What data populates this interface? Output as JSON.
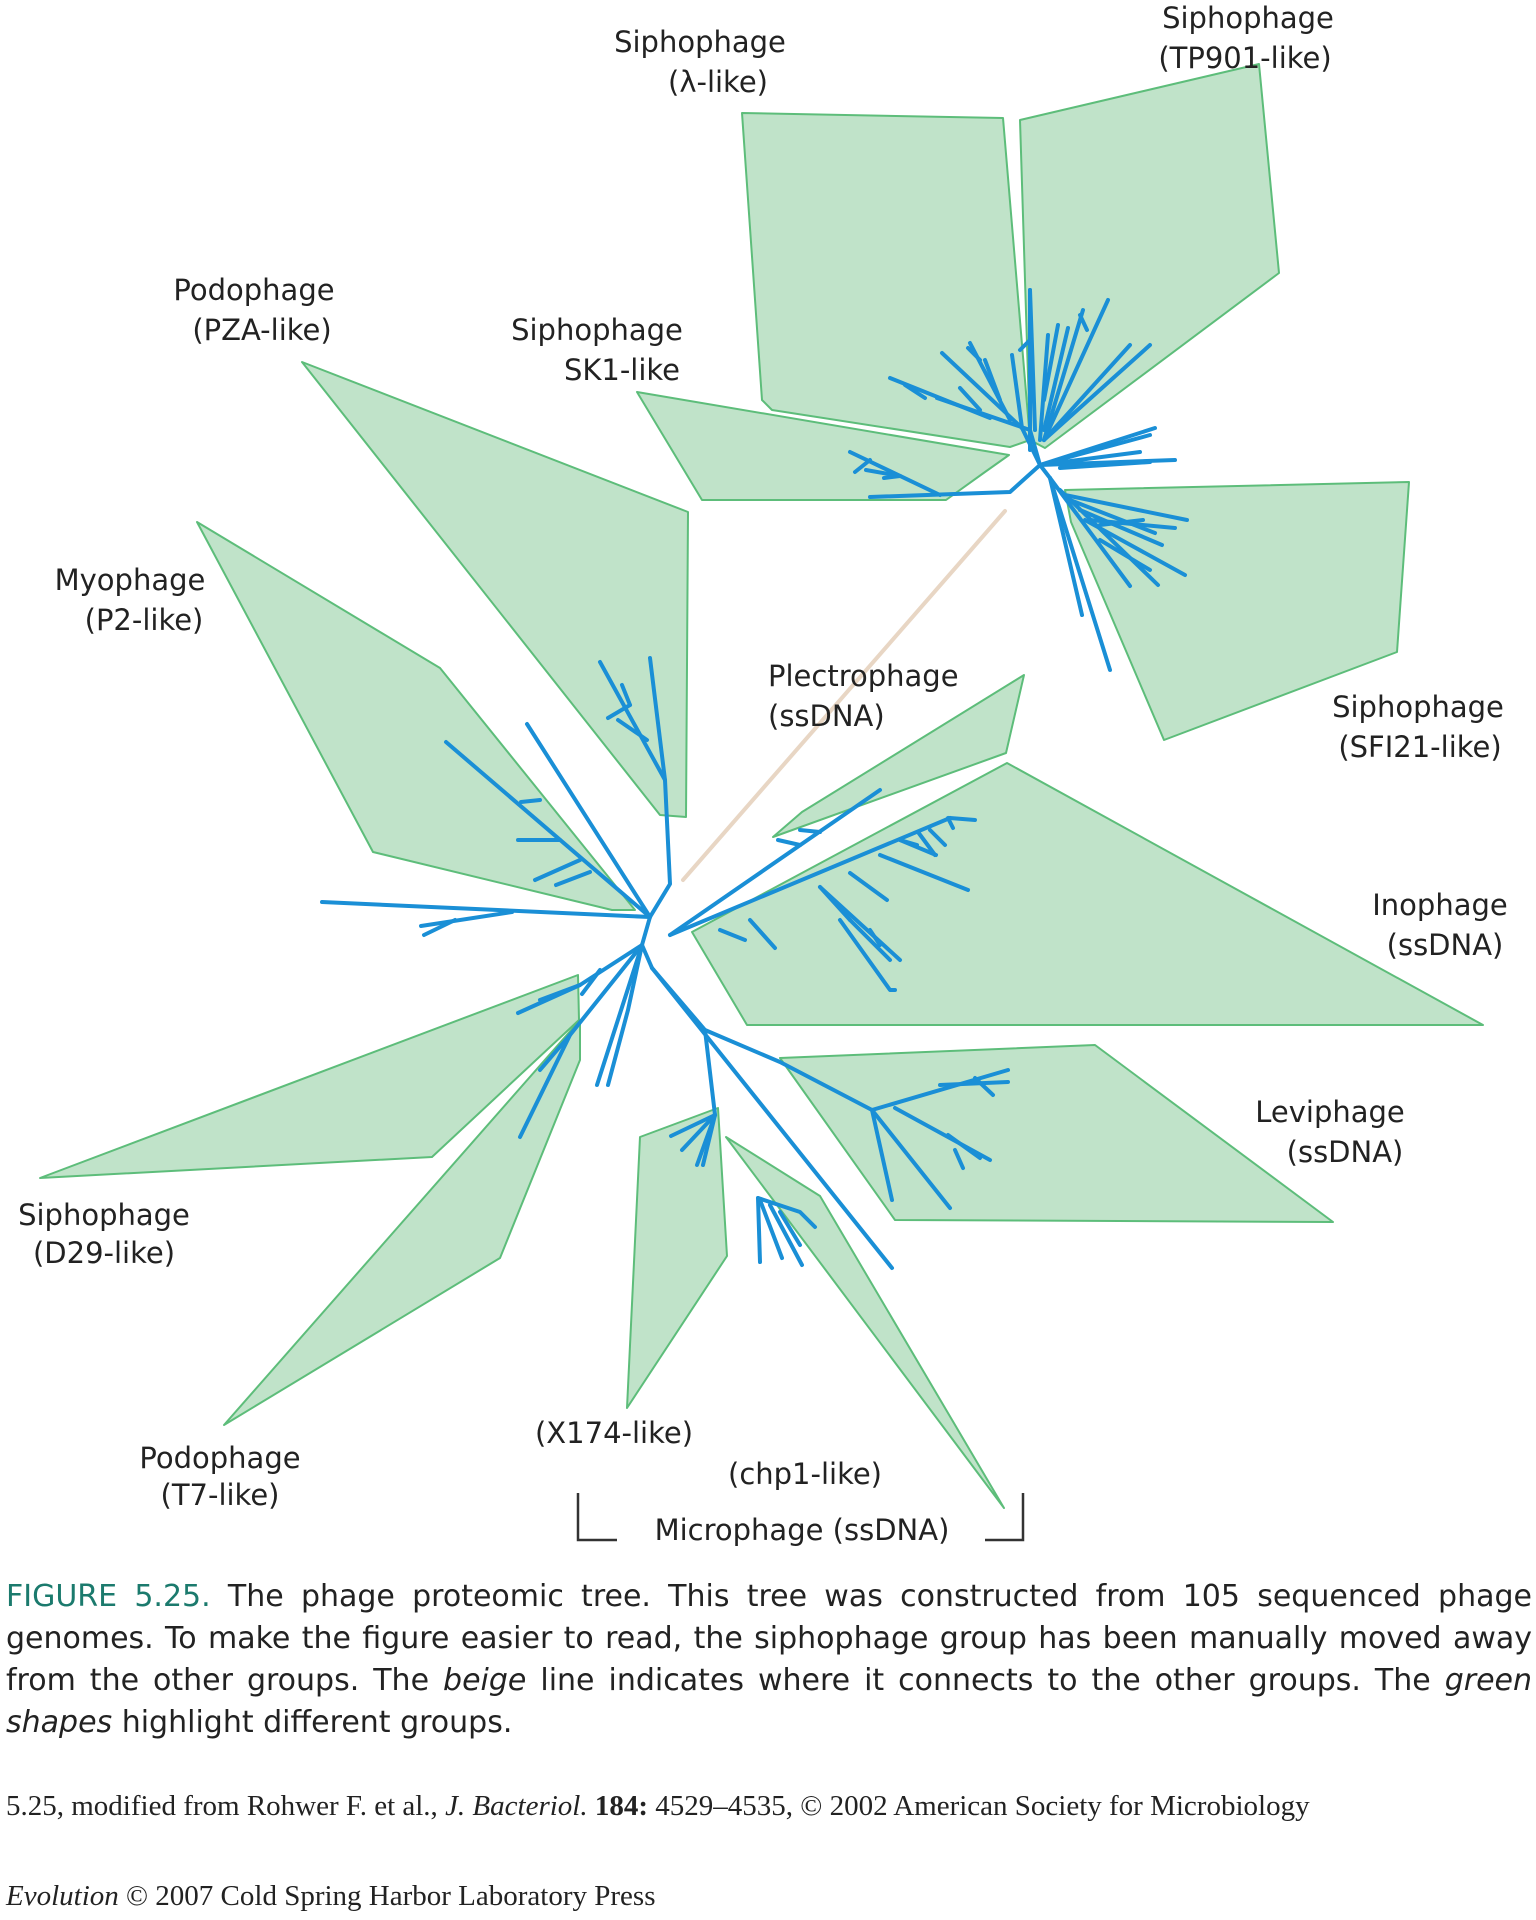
{
  "groups": {
    "sipho_lambda": {
      "name": "Siphophage",
      "sub": "(λ-like)"
    },
    "sipho_tp901": {
      "name": "Siphophage",
      "sub": "(TP901-like)"
    },
    "podo_pza": {
      "name": "Podophage",
      "sub": "(PZA-like)"
    },
    "sipho_sk1": {
      "name": "Siphophage",
      "sub": "SK1-like"
    },
    "myo_p2": {
      "name": "Myophage",
      "sub": "(P2-like)"
    },
    "plectro": {
      "name": "Plectrophage",
      "sub": "(ssDNA)"
    },
    "sipho_sfi21": {
      "name": "Siphophage",
      "sub": "(SFI21-like)"
    },
    "ino": {
      "name": "Inophage",
      "sub": "(ssDNA)"
    },
    "levi": {
      "name": "Leviphage",
      "sub": "(ssDNA)"
    },
    "sipho_d29": {
      "name": "Siphophage",
      "sub": "(D29-like)"
    },
    "podo_t7": {
      "name": "Podophage",
      "sub": "(T7-like)"
    },
    "x174": {
      "sub": "(X174-like)"
    },
    "chp1": {
      "sub": "(chp1-like)"
    },
    "micro": {
      "name": "Microphage (ssDNA)"
    }
  },
  "caption": {
    "fig_label": "FIGURE 5.25.",
    "text_1": " The phage proteomic tree. This tree was constructed from 105 sequenced phage genomes. To make the figure easier to read, the siphophage group has been manually moved away from the other groups. The ",
    "beige": "beige",
    "text_2": " line indicates where it connects to the other groups. The ",
    "green_shapes": "green shapes",
    "text_3": " highlight different groups."
  },
  "credit": {
    "fig_ref": "5.25, modified from Rohwer F. et al., ",
    "journal": "J. Bacteriol.",
    "volume": "184:",
    "rest": " 4529–4535, © 2002 American Society for Microbiology"
  },
  "publisher": {
    "book": "Evolution",
    "rest": " © 2007 Cold Spring Harbor Laboratory Press"
  },
  "colors": {
    "shape_fill": "#c0e3c9",
    "shape_stroke": "#5dbd7a",
    "branch": "#1a8fd6",
    "connector": "#e8d6c4",
    "caption_label": "#1b7a6d"
  }
}
